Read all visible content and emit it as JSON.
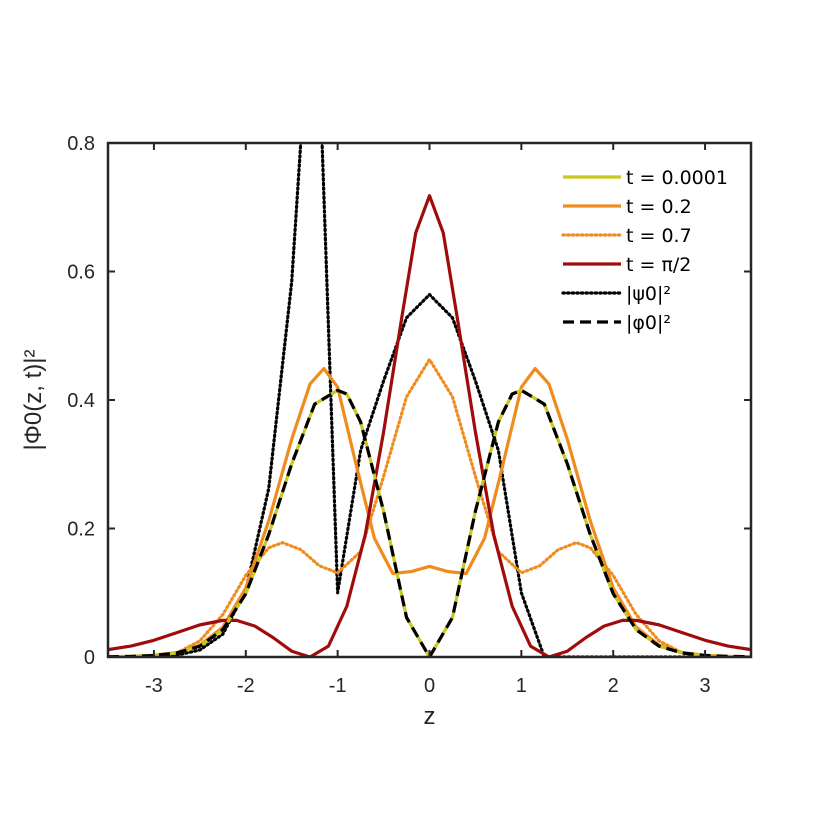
{
  "chart_data": {
    "type": "line",
    "title": "",
    "xlabel": "z",
    "ylabel": "|Φ0(z, t)|²",
    "xlim": [
      -3.5,
      3.5
    ],
    "ylim": [
      0,
      0.8
    ],
    "xticks": [
      "-3",
      "-2",
      "-1",
      "0",
      "1",
      "2",
      "3"
    ],
    "yticks": [
      "0",
      "0.2",
      "0.4",
      "0.6",
      "0.8"
    ],
    "grid": false,
    "legend_position": "top-right",
    "series": [
      {
        "name": "t = 0.0001",
        "color": "#c8c81e",
        "style": "solid",
        "points": [
          [
            -3.5,
            0.0004
          ],
          [
            -3.25,
            0.0009
          ],
          [
            -3,
            0.0023
          ],
          [
            -2.75,
            0.0063
          ],
          [
            -2.5,
            0.0168
          ],
          [
            -2.25,
            0.0425
          ],
          [
            -2,
            0.0985
          ],
          [
            -1.75,
            0.1907
          ],
          [
            -1.5,
            0.3007
          ],
          [
            -1.25,
            0.3936
          ],
          [
            -1,
            0.4151
          ],
          [
            -0.9,
            0.4093
          ],
          [
            -0.75,
            0.3659
          ],
          [
            -0.5,
            0.227
          ],
          [
            -0.25,
            0.0615
          ],
          [
            0,
            0
          ],
          [
            0.25,
            0.0615
          ],
          [
            0.5,
            0.227
          ],
          [
            0.75,
            0.3659
          ],
          [
            0.9,
            0.4093
          ],
          [
            1,
            0.4151
          ],
          [
            1.25,
            0.3936
          ],
          [
            1.5,
            0.3007
          ],
          [
            1.75,
            0.1907
          ],
          [
            2,
            0.0985
          ],
          [
            2.25,
            0.0425
          ],
          [
            2.5,
            0.0168
          ],
          [
            2.75,
            0.0063
          ],
          [
            3,
            0.0023
          ],
          [
            3.25,
            0.0009
          ],
          [
            3.5,
            0.0004
          ]
        ]
      },
      {
        "name": "t = 0.2",
        "color": "#f08c1e",
        "style": "solid",
        "points": [
          [
            -3.5,
            0.0005
          ],
          [
            -3.25,
            0.001
          ],
          [
            -3,
            0.0027
          ],
          [
            -2.75,
            0.007
          ],
          [
            -2.5,
            0.0185
          ],
          [
            -2.25,
            0.0465
          ],
          [
            -2,
            0.1075
          ],
          [
            -1.75,
            0.212
          ],
          [
            -1.5,
            0.339
          ],
          [
            -1.3,
            0.425
          ],
          [
            -1.15,
            0.449
          ],
          [
            -1,
            0.42
          ],
          [
            -0.8,
            0.3
          ],
          [
            -0.6,
            0.185
          ],
          [
            -0.4,
            0.13
          ],
          [
            -0.2,
            0.133
          ],
          [
            0,
            0.141
          ],
          [
            0.2,
            0.133
          ],
          [
            0.4,
            0.13
          ],
          [
            0.6,
            0.185
          ],
          [
            0.8,
            0.3
          ],
          [
            1,
            0.42
          ],
          [
            1.15,
            0.449
          ],
          [
            1.3,
            0.425
          ],
          [
            1.5,
            0.339
          ],
          [
            1.75,
            0.212
          ],
          [
            2,
            0.1075
          ],
          [
            2.25,
            0.0465
          ],
          [
            2.5,
            0.0185
          ],
          [
            2.75,
            0.007
          ],
          [
            3,
            0.0027
          ],
          [
            3.25,
            0.001
          ],
          [
            3.5,
            0.0005
          ]
        ]
      },
      {
        "name": "t = 0.7",
        "color": "#f08c1e",
        "style": "dotted",
        "points": [
          [
            -3.5,
            0
          ],
          [
            -3.25,
            0.0005
          ],
          [
            -3,
            0.0016
          ],
          [
            -2.75,
            0.0065
          ],
          [
            -2.5,
            0.025
          ],
          [
            -2.25,
            0.066
          ],
          [
            -2,
            0.127
          ],
          [
            -1.75,
            0.17
          ],
          [
            -1.6,
            0.178
          ],
          [
            -1.4,
            0.167
          ],
          [
            -1.2,
            0.142
          ],
          [
            -1,
            0.131
          ],
          [
            -0.75,
            0.164
          ],
          [
            -0.5,
            0.281
          ],
          [
            -0.25,
            0.405
          ],
          [
            0,
            0.463
          ],
          [
            0.25,
            0.405
          ],
          [
            0.5,
            0.281
          ],
          [
            0.75,
            0.164
          ],
          [
            1,
            0.131
          ],
          [
            1.2,
            0.142
          ],
          [
            1.4,
            0.167
          ],
          [
            1.6,
            0.178
          ],
          [
            1.75,
            0.17
          ],
          [
            2,
            0.127
          ],
          [
            2.25,
            0.066
          ],
          [
            2.5,
            0.025
          ],
          [
            2.75,
            0.0065
          ],
          [
            3,
            0.0016
          ],
          [
            3.25,
            0.0005
          ],
          [
            3.5,
            0
          ]
        ]
      },
      {
        "name": "t = π/2",
        "color": "#a00c0c",
        "style": "solid",
        "points": [
          [
            -3.5,
            0.0115
          ],
          [
            -3.25,
            0.017
          ],
          [
            -3,
            0.026
          ],
          [
            -2.75,
            0.038
          ],
          [
            -2.5,
            0.05
          ],
          [
            -2.25,
            0.057
          ],
          [
            -2.1,
            0.057
          ],
          [
            -1.9,
            0.048
          ],
          [
            -1.7,
            0.03
          ],
          [
            -1.5,
            0.009
          ],
          [
            -1.3,
            0
          ],
          [
            -1.1,
            0.017
          ],
          [
            -0.9,
            0.079
          ],
          [
            -0.7,
            0.19
          ],
          [
            -0.5,
            0.35
          ],
          [
            -0.3,
            0.53
          ],
          [
            -0.15,
            0.66
          ],
          [
            0,
            0.718
          ],
          [
            0.15,
            0.66
          ],
          [
            0.3,
            0.53
          ],
          [
            0.5,
            0.35
          ],
          [
            0.7,
            0.19
          ],
          [
            0.9,
            0.079
          ],
          [
            1.1,
            0.017
          ],
          [
            1.3,
            0
          ],
          [
            1.5,
            0.009
          ],
          [
            1.7,
            0.03
          ],
          [
            1.9,
            0.048
          ],
          [
            2.1,
            0.057
          ],
          [
            2.25,
            0.057
          ],
          [
            2.5,
            0.05
          ],
          [
            2.75,
            0.038
          ],
          [
            3,
            0.026
          ],
          [
            3.25,
            0.017
          ],
          [
            3.5,
            0.0115
          ]
        ]
      },
      {
        "name": "|ψ0|²",
        "color": "#000000",
        "style": "dotted",
        "points": [
          [
            -3.5,
            0
          ],
          [
            -3.25,
            0.0001
          ],
          [
            -3,
            0.0007
          ],
          [
            -2.75,
            0.0029
          ],
          [
            -2.5,
            0.0109
          ],
          [
            -2.25,
            0.0356
          ],
          [
            -2,
            0.1034
          ],
          [
            -1.75,
            0.2624
          ],
          [
            -1.5,
            0.5841
          ],
          [
            -1.25,
            1.1331
          ],
          [
            -1,
            0.1
          ],
          [
            -0.75,
            0.3215
          ],
          [
            -0.5,
            0.4297
          ],
          [
            -0.25,
            0.528
          ],
          [
            0,
            0.564
          ],
          [
            0.25,
            0.528
          ],
          [
            0.5,
            0.4297
          ],
          [
            0.75,
            0.3215
          ],
          [
            1,
            0.1
          ],
          [
            1.25,
            0.0
          ],
          [
            1.5,
            0
          ],
          [
            1.75,
            0
          ],
          [
            2,
            0
          ],
          [
            2.25,
            0
          ],
          [
            2.5,
            0
          ],
          [
            2.75,
            0
          ],
          [
            3,
            0
          ],
          [
            3.25,
            0
          ],
          [
            3.5,
            0
          ]
        ]
      },
      {
        "name": "|φ0|²",
        "color": "#000000",
        "style": "dashed",
        "points": [
          [
            -3.5,
            0.0004
          ],
          [
            -3.25,
            0.0009
          ],
          [
            -3,
            0.0023
          ],
          [
            -2.75,
            0.0063
          ],
          [
            -2.5,
            0.0168
          ],
          [
            -2.25,
            0.0425
          ],
          [
            -2,
            0.0985
          ],
          [
            -1.75,
            0.1907
          ],
          [
            -1.5,
            0.3007
          ],
          [
            -1.25,
            0.3936
          ],
          [
            -1,
            0.4151
          ],
          [
            -0.9,
            0.4093
          ],
          [
            -0.75,
            0.3659
          ],
          [
            -0.5,
            0.227
          ],
          [
            -0.25,
            0.0615
          ],
          [
            0,
            0
          ],
          [
            0.25,
            0.0615
          ],
          [
            0.5,
            0.227
          ],
          [
            0.75,
            0.3659
          ],
          [
            0.9,
            0.4093
          ],
          [
            1,
            0.4151
          ],
          [
            1.25,
            0.3936
          ],
          [
            1.5,
            0.3007
          ],
          [
            1.75,
            0.1907
          ],
          [
            2,
            0.0985
          ],
          [
            2.25,
            0.0425
          ],
          [
            2.5,
            0.0168
          ],
          [
            2.75,
            0.0063
          ],
          [
            3,
            0.0023
          ],
          [
            3.25,
            0.0009
          ],
          [
            3.5,
            0.0004
          ]
        ]
      }
    ]
  }
}
